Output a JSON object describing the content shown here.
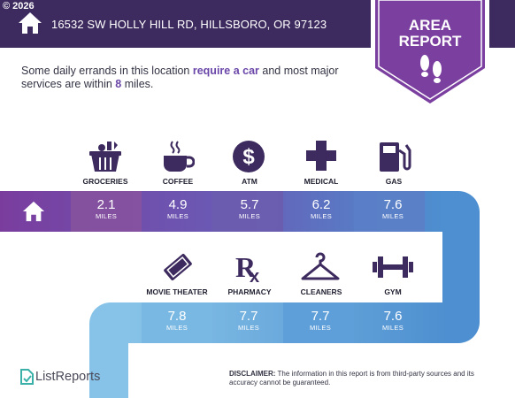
{
  "header": {
    "copyright": "© 2026",
    "address": "16532 SW HOLLY HILL RD, HILLSBORO, OR 97123"
  },
  "badge": {
    "line1": "AREA",
    "line2": "REPORT"
  },
  "intro": {
    "part1": "Some daily errands in this location ",
    "highlight1": "require a car",
    "part2": " and most major services are within ",
    "highlight2": "8",
    "part3": " miles."
  },
  "row1": [
    {
      "label": "GROCERIES",
      "miles": "2.1",
      "unit": "MILES",
      "icon": "grocery-basket-icon"
    },
    {
      "label": "COFFEE",
      "miles": "4.9",
      "unit": "MILES",
      "icon": "coffee-cup-icon"
    },
    {
      "label": "ATM",
      "miles": "5.7",
      "unit": "MILES",
      "icon": "dollar-icon"
    },
    {
      "label": "MEDICAL",
      "miles": "6.2",
      "unit": "MILES",
      "icon": "medical-cross-icon"
    },
    {
      "label": "GAS",
      "miles": "7.6",
      "unit": "MILES",
      "icon": "gas-pump-icon"
    }
  ],
  "row2": [
    {
      "label": "MOVIE THEATER",
      "miles": "7.8",
      "unit": "MILES",
      "icon": "ticket-icon"
    },
    {
      "label": "PHARMACY",
      "miles": "7.7",
      "unit": "MILES",
      "icon": "rx-icon"
    },
    {
      "label": "CLEANERS",
      "miles": "7.7",
      "unit": "MILES",
      "icon": "hanger-icon"
    },
    {
      "label": "GYM",
      "miles": "7.6",
      "unit": "MILES",
      "icon": "dumbbell-icon"
    }
  ],
  "footer": {
    "logo": "ListReports",
    "disclaimer_label": "DISCLAIMER:",
    "disclaimer_text": " The information in this report is from third-party sources and its accuracy cannot be guaranteed."
  },
  "colors": {
    "header": "#3d2a5e",
    "badge": "#7b3fa0",
    "band_purple": "#7a3d9e",
    "band_blue": "#4d8fd0",
    "band_light": "#87c3e8"
  }
}
